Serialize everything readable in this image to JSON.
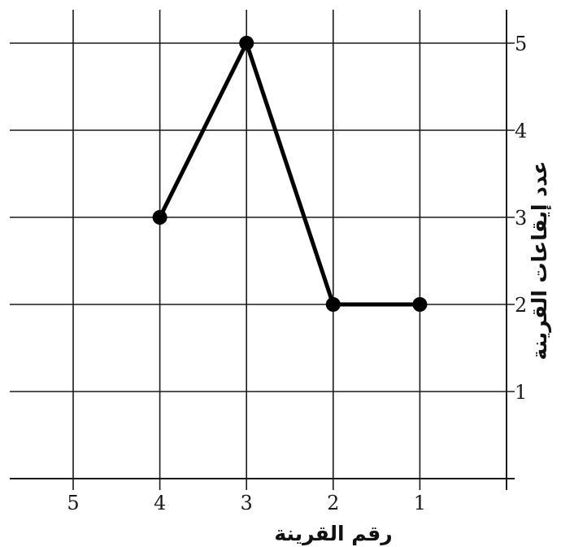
{
  "chart_data": {
    "type": "line",
    "x": [
      4,
      3,
      2,
      1
    ],
    "series": [
      {
        "values": [
          3,
          5,
          2,
          2
        ]
      }
    ],
    "xlabel": "رقم القرينة",
    "ylabel": "عدد إيقاعات القرينة",
    "x_ticks": [
      "5",
      "4",
      "3",
      "2",
      "1"
    ],
    "y_ticks": [
      "1",
      "2",
      "3",
      "4",
      "5"
    ],
    "xlim": [
      0,
      5
    ],
    "ylim": [
      0,
      5
    ],
    "x_direction": "reversed",
    "y_axis_position": "right",
    "grid": true,
    "line_color": "#000000"
  }
}
